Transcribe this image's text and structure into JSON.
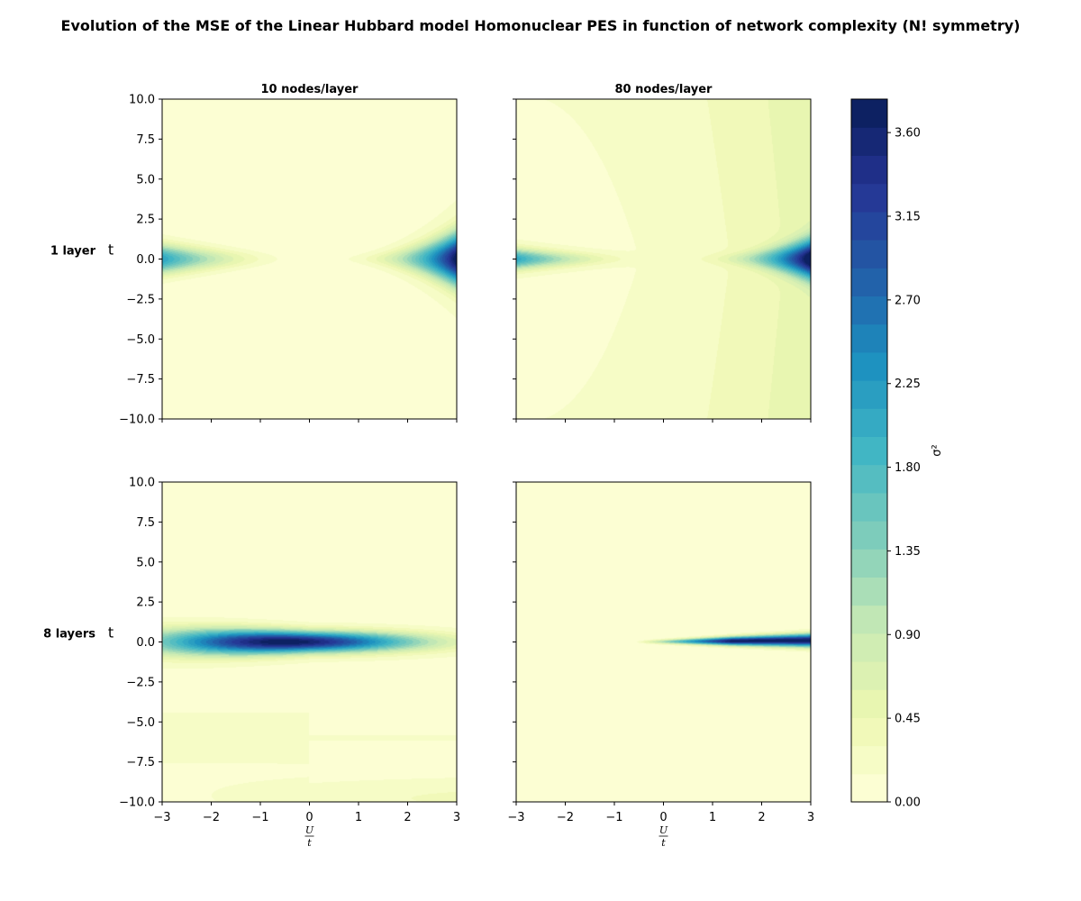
{
  "chart_data": {
    "type": "heatmap",
    "title": "Evolution of the MSE of the Linear Hubbard model Homonuclear PES in function of network complexity (N! symmetry)",
    "column_titles": [
      "10 nodes/layer",
      "80 nodes/layer"
    ],
    "row_labels": [
      "1 layer",
      "8 layers"
    ],
    "ylabel": "t",
    "xlabel": {
      "numerator": "U",
      "denominator": "t"
    },
    "xlim": [
      -3,
      3
    ],
    "ylim": [
      -10,
      10
    ],
    "x_ticks": [
      -3,
      -2,
      -1,
      0,
      1,
      2,
      3
    ],
    "y_ticks": [
      10.0,
      7.5,
      5.0,
      2.5,
      0.0,
      -2.5,
      -5.0,
      -7.5,
      -10.0
    ],
    "x_tick_labels": [
      "−3",
      "−2",
      "−1",
      "0",
      "1",
      "2",
      "3"
    ],
    "y_tick_labels": [
      "10.0",
      "7.5",
      "5.0",
      "2.5",
      "0.0",
      "−2.5",
      "−5.0",
      "−7.5",
      "−10.0"
    ],
    "colorbar": {
      "label": "σ²",
      "min": 0.0,
      "max": 3.78,
      "levels": 25,
      "ticks": [
        0.0,
        0.45,
        0.9,
        1.35,
        1.8,
        2.25,
        2.7,
        3.15,
        3.6
      ],
      "tick_labels": [
        "0.00",
        "0.45",
        "0.90",
        "1.35",
        "1.80",
        "2.25",
        "2.70",
        "3.15",
        "3.60"
      ],
      "colormap": "YlGnBu"
    },
    "panels": [
      {
        "row": 0,
        "col": 0,
        "peak_value": 3.7,
        "description": "left and right tails near t=0"
      },
      {
        "row": 0,
        "col": 1,
        "peak_value": 3.7,
        "description": "tails near t=0, higher background at U/t=3"
      },
      {
        "row": 1,
        "col": 0,
        "peak_value": 3.7,
        "description": "broad band at t=0 peaked near U/t=-0.5"
      },
      {
        "row": 1,
        "col": 1,
        "peak_value": 3.7,
        "description": "narrow band at t=0 for U/t>-0.5"
      }
    ],
    "colors": [
      "#ffffd9",
      "#edf8b1",
      "#c7e9b4",
      "#7fcdbb",
      "#41b6c4",
      "#1d91c0",
      "#225ea8",
      "#253494",
      "#081d58"
    ]
  }
}
